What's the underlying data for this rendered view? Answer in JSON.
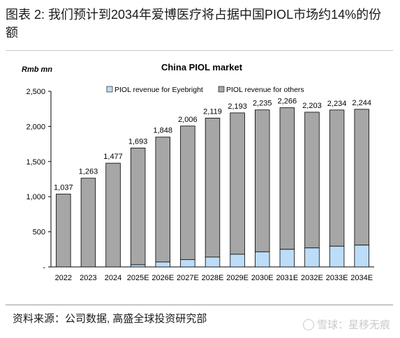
{
  "caption": "图表 2: 我们预计到2034年爱博医疗将占据中国PIOL市场约14%的份额",
  "source": "资料来源：公司数据, 高盛全球投资研究部",
  "watermark": "雪球：星移无痕",
  "colors": {
    "eyebright": "#bcdcf7",
    "others": "#a6a6a6",
    "bar_stroke": "#000000"
  },
  "chart_data": {
    "type": "bar",
    "stacked": true,
    "title": "China PIOL market",
    "ylabel": "Rmb mn",
    "xlabel": "",
    "ylim": [
      0,
      2500
    ],
    "yticks": [
      0,
      500,
      1000,
      1500,
      2000,
      2500
    ],
    "ytick_labels": [
      "-",
      "500",
      "1,000",
      "1,500",
      "2,000",
      "2,500"
    ],
    "grid": false,
    "legend_position": "top",
    "categories": [
      "2022",
      "2023",
      "2024",
      "2025E",
      "2026E",
      "2027E",
      "2028E",
      "2029E",
      "2030E",
      "2031E",
      "2032E",
      "2033E",
      "2034E"
    ],
    "series": [
      {
        "name": "PIOL revenue for Eyebright",
        "values": [
          0,
          0,
          0,
          30,
          70,
          105,
          140,
          180,
          215,
          250,
          270,
          295,
          310
        ]
      },
      {
        "name": "PIOL revenue for others",
        "values": [
          1037,
          1263,
          1477,
          1663,
          1778,
          1901,
          1979,
          2013,
          2020,
          2016,
          1933,
          1939,
          1934
        ]
      }
    ],
    "totals": [
      1037,
      1263,
      1477,
      1693,
      1848,
      2006,
      2119,
      2193,
      2235,
      2266,
      2203,
      2234,
      2244
    ],
    "total_labels": [
      "1,037",
      "1,263",
      "1,477",
      "1,693",
      "1,848",
      "2,006",
      "2,119",
      "2,193",
      "2,235",
      "2,266",
      "2,203",
      "2,234",
      "2,244"
    ]
  }
}
